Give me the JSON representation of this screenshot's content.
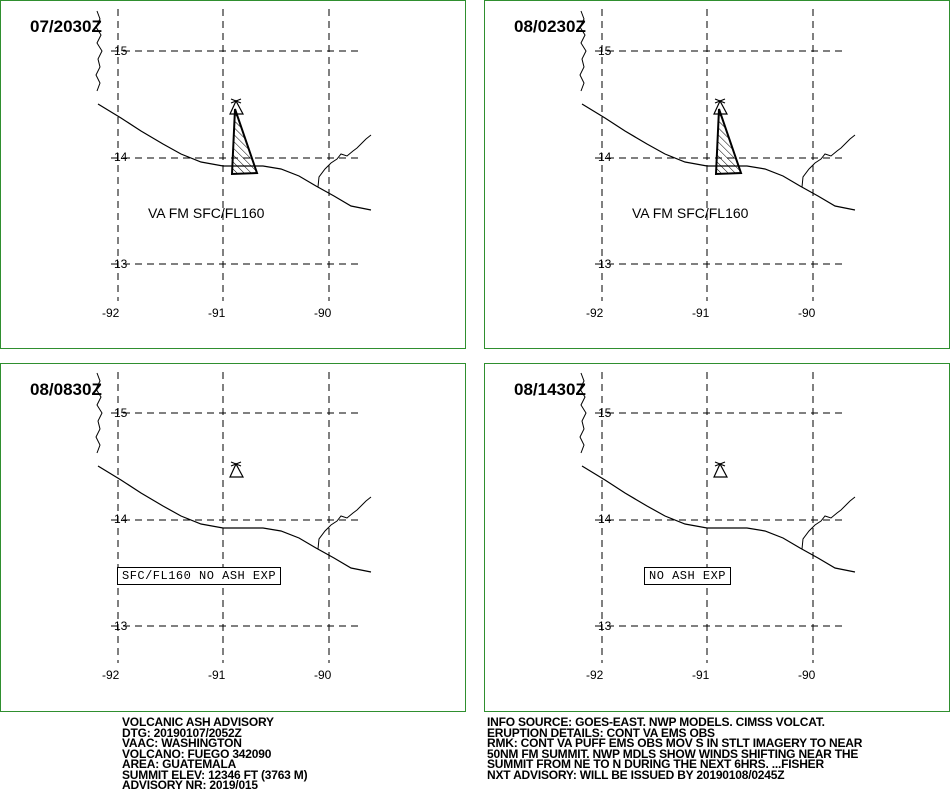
{
  "panels": [
    {
      "valid_time": "07/2030Z",
      "lat_labels": [
        "15",
        "14",
        "13"
      ],
      "lon_labels": [
        "-92",
        "-91",
        "-90"
      ],
      "ash_text": "VA FM SFC/FL160",
      "no_ash_text": "",
      "has_ash_polygon": true
    },
    {
      "valid_time": "08/0230Z",
      "lat_labels": [
        "15",
        "14",
        "13"
      ],
      "lon_labels": [
        "-92",
        "-91",
        "-90"
      ],
      "ash_text": "VA FM SFC/FL160",
      "no_ash_text": "",
      "has_ash_polygon": true
    },
    {
      "valid_time": "08/0830Z",
      "lat_labels": [
        "15",
        "14",
        "13"
      ],
      "lon_labels": [
        "-92",
        "-91",
        "-90"
      ],
      "ash_text": "",
      "no_ash_text": "SFC/FL160 NO ASH EXP",
      "has_ash_polygon": false
    },
    {
      "valid_time": "08/1430Z",
      "lat_labels": [
        "15",
        "14",
        "13"
      ],
      "lon_labels": [
        "-92",
        "-91",
        "-90"
      ],
      "ash_text": "",
      "no_ash_text": "NO ASH EXP",
      "has_ash_polygon": false
    }
  ],
  "advisory_left": [
    "VOLCANIC ASH ADVISORY",
    "DTG: 20190107/2052Z",
    "VAAC: WASHINGTON",
    "VOLCANO: FUEGO 342090",
    "AREA: GUATEMALA",
    "SUMMIT ELEV: 12346 FT (3763 M)",
    "ADVISORY NR: 2019/015"
  ],
  "advisory_right": [
    "INFO SOURCE: GOES-EAST. NWP MODELS. CIMSS VOLCAT.",
    "ERUPTION DETAILS: CONT VA EMS OBS",
    "RMK: CONT VA PUFF EMS OBS MOV S IN STLT IMAGERY TO NEAR",
    "50NM FM SUMMIT. NWP MDLS SHOW WINDS SHIFTING NEAR THE",
    "SUMMIT FROM NE TO N DURING THE NEXT 6HRS. ...FISHER",
    "NXT ADVISORY: WILL BE ISSUED BY 20190108/0245Z"
  ],
  "colors": {
    "panel_border": "#2f8f2f",
    "grid": "#000000",
    "coast": "#000000"
  },
  "icons": {
    "volcano": "volcano-icon"
  }
}
